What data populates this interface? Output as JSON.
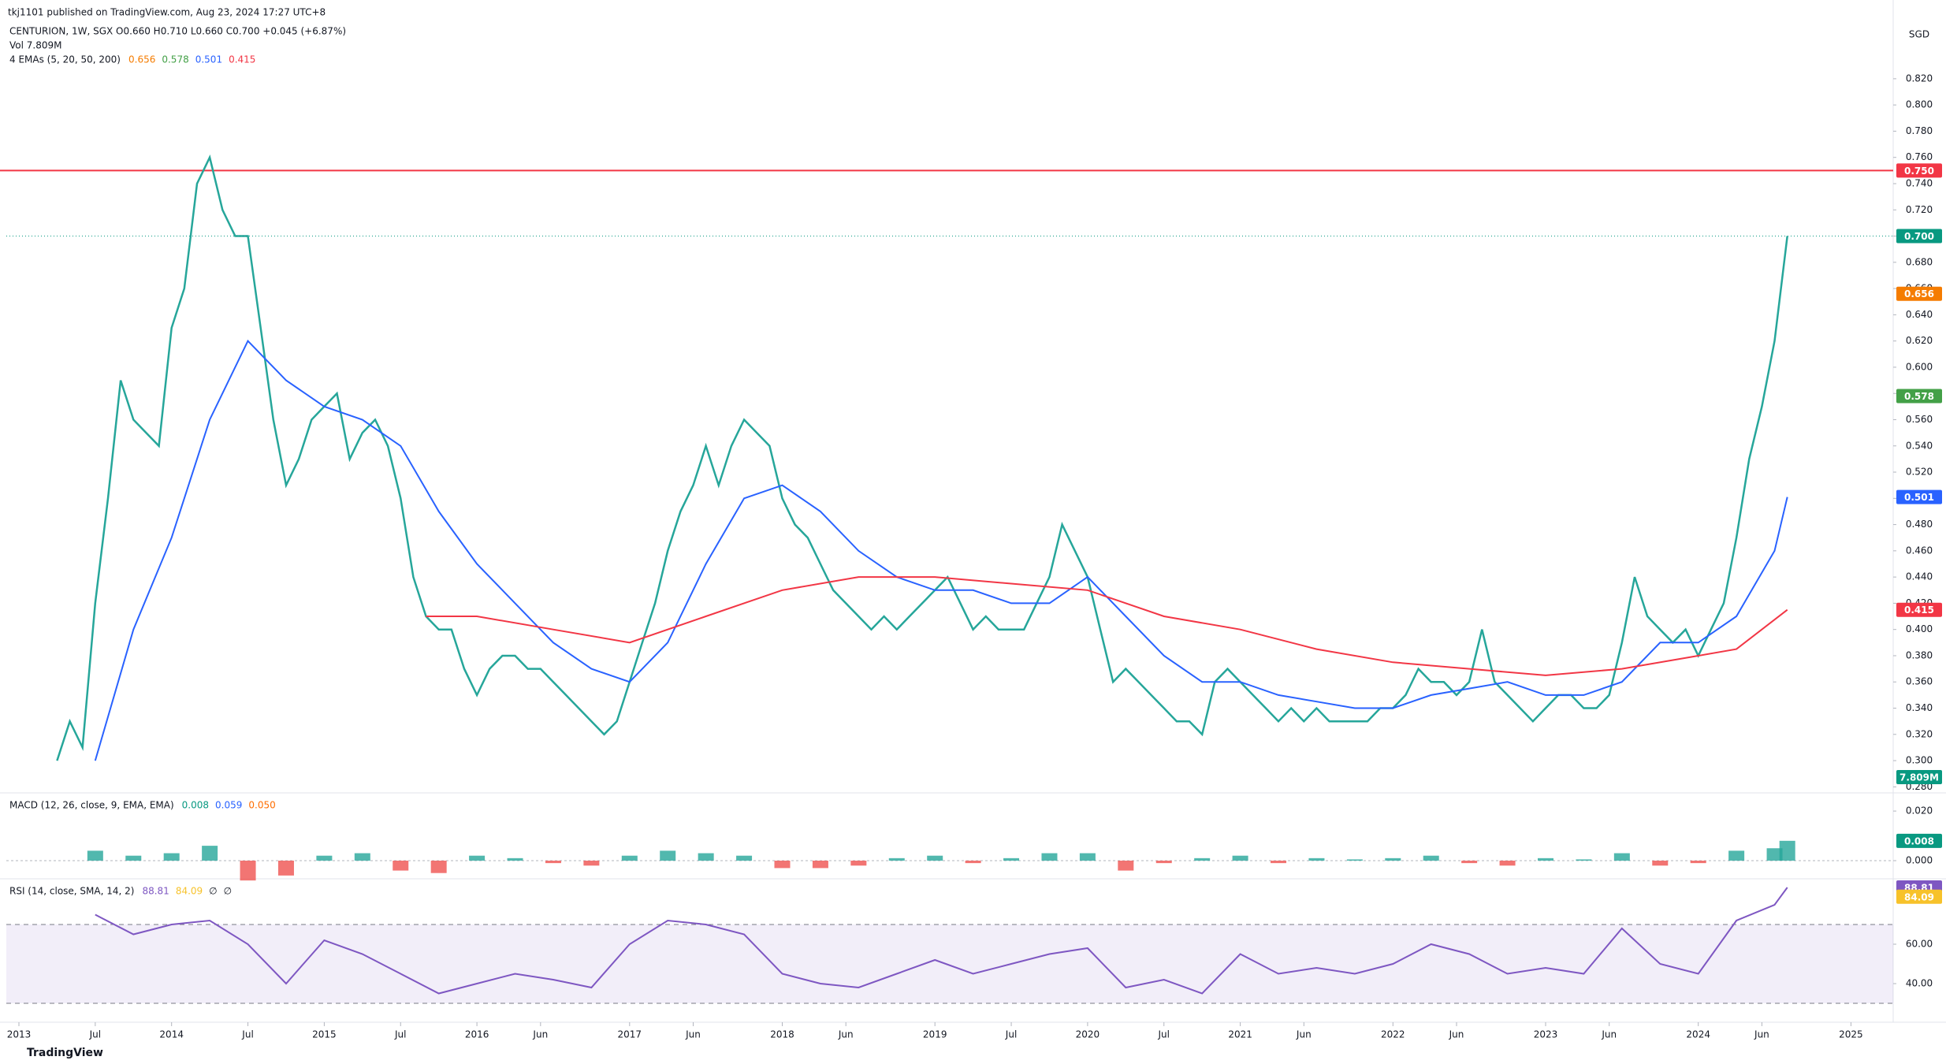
{
  "header": "tkj1101 published on TradingView.com, Aug 23, 2024 17:27 UTC+8",
  "footer": "TradingView",
  "currency": "SGD",
  "chart_data": [
    {
      "type": "line",
      "title": "CENTURION, 1W, SGX  O0.660  H0.710  L0.660  C0.700  +0.045 (+6.87%)",
      "volume_legend": "Vol  7.809M",
      "volume_tag": "7.809M",
      "ema_legend": "4 EMAs (5, 20, 50, 200)",
      "ema_values": [
        {
          "label": "0.656",
          "color": "#f57c00"
        },
        {
          "label": "0.578",
          "color": "#43a047"
        },
        {
          "label": "0.501",
          "color": "#2962ff"
        },
        {
          "label": "0.415",
          "color": "#f23645"
        }
      ],
      "ylim": [
        0.276,
        0.862
      ],
      "yticks": [
        {
          "value": 0.28,
          "label": "0.280"
        },
        {
          "value": 0.3,
          "label": "0.300"
        },
        {
          "value": 0.32,
          "label": "0.320"
        },
        {
          "value": 0.34,
          "label": "0.340"
        },
        {
          "value": 0.36,
          "label": "0.360"
        },
        {
          "value": 0.38,
          "label": "0.380"
        },
        {
          "value": 0.4,
          "label": "0.400"
        },
        {
          "value": 0.42,
          "label": "0.420"
        },
        {
          "value": 0.44,
          "label": "0.440"
        },
        {
          "value": 0.46,
          "label": "0.460"
        },
        {
          "value": 0.48,
          "label": "0.480"
        },
        {
          "value": 0.5,
          "label": "0.500"
        },
        {
          "value": 0.52,
          "label": "0.520"
        },
        {
          "value": 0.54,
          "label": "0.540"
        },
        {
          "value": 0.56,
          "label": "0.560"
        },
        {
          "value": 0.58,
          "label": "0.580"
        },
        {
          "value": 0.6,
          "label": "0.600"
        },
        {
          "value": 0.62,
          "label": "0.620"
        },
        {
          "value": 0.64,
          "label": "0.640"
        },
        {
          "value": 0.66,
          "label": "0.660"
        },
        {
          "value": 0.68,
          "label": "0.680"
        },
        {
          "value": 0.7,
          "label": "0.700"
        },
        {
          "value": 0.72,
          "label": "0.720"
        },
        {
          "value": 0.74,
          "label": "0.740"
        },
        {
          "value": 0.76,
          "label": "0.760"
        },
        {
          "value": 0.78,
          "label": "0.780"
        },
        {
          "value": 0.8,
          "label": "0.800"
        },
        {
          "value": 0.82,
          "label": "0.820"
        }
      ],
      "hline": {
        "value": 0.75,
        "label": "0.750",
        "color": "#f23645"
      },
      "tags": [
        {
          "value": 0.7,
          "label": "0.700",
          "color": "#089981"
        },
        {
          "value": 0.656,
          "label": "0.656",
          "color": "#f57c00"
        },
        {
          "value": 0.578,
          "label": "0.578",
          "color": "#43a047"
        },
        {
          "value": 0.501,
          "label": "0.501",
          "color": "#2962ff"
        },
        {
          "value": 0.415,
          "label": "0.415",
          "color": "#f23645"
        }
      ],
      "series": [
        {
          "color": "#26a69a",
          "x": [
            "2013-04",
            "2013-05",
            "2013-06",
            "2013-07",
            "2013-08",
            "2013-09",
            "2013-10",
            "2013-11",
            "2013-12",
            "2014-01",
            "2014-02",
            "2014-03",
            "2014-04",
            "2014-05",
            "2014-06",
            "2014-07",
            "2014-08",
            "2014-09",
            "2014-10",
            "2014-11",
            "2014-12",
            "2015-01",
            "2015-02",
            "2015-03",
            "2015-04",
            "2015-05",
            "2015-06",
            "2015-07",
            "2015-08",
            "2015-09",
            "2015-10",
            "2015-11",
            "2015-12",
            "2016-01",
            "2016-02",
            "2016-03",
            "2016-04",
            "2016-05",
            "2016-06",
            "2016-07",
            "2016-08",
            "2016-09",
            "2016-10",
            "2016-11",
            "2016-12",
            "2017-01",
            "2017-02",
            "2017-03",
            "2017-04",
            "2017-05",
            "2017-06",
            "2017-07",
            "2017-08",
            "2017-09",
            "2017-10",
            "2017-11",
            "2017-12",
            "2018-01",
            "2018-02",
            "2018-03",
            "2018-04",
            "2018-05",
            "2018-06",
            "2018-07",
            "2018-08",
            "2018-09",
            "2018-10",
            "2018-11",
            "2018-12",
            "2019-01",
            "2019-02",
            "2019-03",
            "2019-04",
            "2019-05",
            "2019-06",
            "2019-07",
            "2019-08",
            "2019-09",
            "2019-10",
            "2019-11",
            "2019-12",
            "2020-01",
            "2020-02",
            "2020-03",
            "2020-04",
            "2020-05",
            "2020-06",
            "2020-07",
            "2020-08",
            "2020-09",
            "2020-10",
            "2020-11",
            "2020-12",
            "2021-01",
            "2021-02",
            "2021-03",
            "2021-04",
            "2021-05",
            "2021-06",
            "2021-07",
            "2021-08",
            "2021-09",
            "2021-10",
            "2021-11",
            "2021-12",
            "2022-01",
            "2022-02",
            "2022-03",
            "2022-04",
            "2022-05",
            "2022-06",
            "2022-07",
            "2022-08",
            "2022-09",
            "2022-10",
            "2022-11",
            "2022-12",
            "2023-01",
            "2023-02",
            "2023-03",
            "2023-04",
            "2023-05",
            "2023-06",
            "2023-07",
            "2023-08",
            "2023-09",
            "2023-10",
            "2023-11",
            "2023-12",
            "2024-01",
            "2024-02",
            "2024-03",
            "2024-04",
            "2024-05",
            "2024-06",
            "2024-07",
            "2024-08"
          ],
          "values": [
            0.3,
            0.33,
            0.31,
            0.42,
            0.5,
            0.59,
            0.56,
            0.55,
            0.54,
            0.63,
            0.66,
            0.74,
            0.76,
            0.72,
            0.7,
            0.7,
            0.63,
            0.56,
            0.51,
            0.53,
            0.56,
            0.57,
            0.58,
            0.53,
            0.55,
            0.56,
            0.54,
            0.5,
            0.44,
            0.41,
            0.4,
            0.4,
            0.37,
            0.35,
            0.37,
            0.38,
            0.38,
            0.37,
            0.37,
            0.36,
            0.35,
            0.34,
            0.33,
            0.32,
            0.33,
            0.36,
            0.39,
            0.42,
            0.46,
            0.49,
            0.51,
            0.54,
            0.51,
            0.54,
            0.56,
            0.55,
            0.54,
            0.5,
            0.48,
            0.47,
            0.45,
            0.43,
            0.42,
            0.41,
            0.4,
            0.41,
            0.4,
            0.41,
            0.42,
            0.43,
            0.44,
            0.42,
            0.4,
            0.41,
            0.4,
            0.4,
            0.4,
            0.42,
            0.44,
            0.48,
            0.46,
            0.44,
            0.4,
            0.36,
            0.37,
            0.36,
            0.35,
            0.34,
            0.33,
            0.33,
            0.32,
            0.36,
            0.37,
            0.36,
            0.35,
            0.34,
            0.33,
            0.34,
            0.33,
            0.34,
            0.33,
            0.33,
            0.33,
            0.33,
            0.34,
            0.34,
            0.35,
            0.37,
            0.36,
            0.36,
            0.35,
            0.36,
            0.4,
            0.36,
            0.35,
            0.34,
            0.33,
            0.34,
            0.35,
            0.35,
            0.34,
            0.34,
            0.35,
            0.39,
            0.44,
            0.41,
            0.4,
            0.39,
            0.4,
            0.38,
            0.4,
            0.42,
            0.47,
            0.53,
            0.57,
            0.62,
            0.7
          ]
        },
        {
          "color": "#2962ff",
          "x": [
            "2013-07",
            "2013-10",
            "2014-01",
            "2014-04",
            "2014-07",
            "2014-10",
            "2015-01",
            "2015-04",
            "2015-07",
            "2015-10",
            "2016-01",
            "2016-04",
            "2016-07",
            "2016-10",
            "2017-01",
            "2017-04",
            "2017-07",
            "2017-10",
            "2018-01",
            "2018-04",
            "2018-07",
            "2018-10",
            "2019-01",
            "2019-04",
            "2019-07",
            "2019-10",
            "2020-01",
            "2020-04",
            "2020-07",
            "2020-10",
            "2021-01",
            "2021-04",
            "2021-07",
            "2021-10",
            "2022-01",
            "2022-04",
            "2022-07",
            "2022-10",
            "2023-01",
            "2023-04",
            "2023-07",
            "2023-10",
            "2024-01",
            "2024-04",
            "2024-07",
            "2024-08"
          ],
          "values": [
            0.3,
            0.4,
            0.47,
            0.56,
            0.62,
            0.59,
            0.57,
            0.56,
            0.54,
            0.49,
            0.45,
            0.42,
            0.39,
            0.37,
            0.36,
            0.39,
            0.45,
            0.5,
            0.51,
            0.49,
            0.46,
            0.44,
            0.43,
            0.43,
            0.42,
            0.42,
            0.44,
            0.41,
            0.38,
            0.36,
            0.36,
            0.35,
            0.345,
            0.34,
            0.34,
            0.35,
            0.355,
            0.36,
            0.35,
            0.35,
            0.36,
            0.39,
            0.39,
            0.41,
            0.46,
            0.501
          ]
        },
        {
          "color": "#f23645",
          "x": [
            "2015-09",
            "2016-01",
            "2016-07",
            "2017-01",
            "2017-07",
            "2018-01",
            "2018-07",
            "2019-01",
            "2019-07",
            "2020-01",
            "2020-07",
            "2021-01",
            "2021-07",
            "2022-01",
            "2022-07",
            "2023-01",
            "2023-07",
            "2024-01",
            "2024-04",
            "2024-08"
          ],
          "values": [
            0.41,
            0.41,
            0.4,
            0.39,
            0.41,
            0.43,
            0.44,
            0.44,
            0.435,
            0.43,
            0.41,
            0.4,
            0.385,
            0.375,
            0.37,
            0.365,
            0.37,
            0.38,
            0.385,
            0.415
          ]
        }
      ]
    },
    {
      "type": "bar",
      "title": "MACD (12, 26, close, 9, EMA, EMA)",
      "legend_values": [
        {
          "label": "0.008",
          "color": "#089981"
        },
        {
          "label": "0.059",
          "color": "#2962ff"
        },
        {
          "label": "0.050",
          "color": "#ff6d00"
        }
      ],
      "tag": {
        "value": 0.008,
        "label": "0.008",
        "color": "#089981"
      },
      "ylim": [
        -0.007,
        0.0267
      ],
      "yticks": [
        {
          "value": 0,
          "label": "0.000"
        },
        {
          "value": 0.02,
          "label": "0.020"
        }
      ],
      "colors": {
        "up": "#26a69a",
        "down": "#ef5350"
      },
      "x": [
        "2013-07",
        "2013-10",
        "2014-01",
        "2014-04",
        "2014-07",
        "2014-10",
        "2015-01",
        "2015-04",
        "2015-07",
        "2015-10",
        "2016-01",
        "2016-04",
        "2016-07",
        "2016-10",
        "2017-01",
        "2017-04",
        "2017-07",
        "2017-10",
        "2018-01",
        "2018-04",
        "2018-07",
        "2018-10",
        "2019-01",
        "2019-04",
        "2019-07",
        "2019-10",
        "2020-01",
        "2020-04",
        "2020-07",
        "2020-10",
        "2021-01",
        "2021-04",
        "2021-07",
        "2021-10",
        "2022-01",
        "2022-04",
        "2022-07",
        "2022-10",
        "2023-01",
        "2023-04",
        "2023-07",
        "2023-10",
        "2024-01",
        "2024-04",
        "2024-07",
        "2024-08"
      ],
      "values": [
        0.004,
        0.002,
        0.003,
        0.006,
        -0.008,
        -0.006,
        0.002,
        0.003,
        -0.004,
        -0.005,
        0.002,
        0.001,
        -0.001,
        -0.002,
        0.002,
        0.004,
        0.003,
        0.002,
        -0.003,
        -0.003,
        -0.002,
        0.001,
        0.002,
        -0.001,
        0.001,
        0.003,
        0.003,
        -0.004,
        -0.001,
        0.001,
        0.002,
        -0.001,
        0.001,
        0.0005,
        0.001,
        0.002,
        -0.001,
        -0.002,
        0.001,
        0.0005,
        0.003,
        -0.002,
        -0.001,
        0.004,
        0.005,
        0.008
      ]
    },
    {
      "type": "line",
      "title": "RSI (14, close, SMA, 14, 2)",
      "legend_values": [
        {
          "label": "88.81",
          "color": "#7e57c2"
        },
        {
          "label": "84.09",
          "color": "#f7c22a"
        },
        {
          "label": "∅",
          "color": "#131722"
        },
        {
          "label": "∅",
          "color": "#131722"
        }
      ],
      "tags": [
        {
          "value": 88.81,
          "label": "88.81",
          "color": "#7e57c2"
        },
        {
          "value": 84.09,
          "label": "84.09",
          "color": "#f7c22a"
        }
      ],
      "levels": [
        30,
        70
      ],
      "ylim": [
        20.8,
        92.4
      ],
      "yticks": [
        {
          "value": 40,
          "label": "40.00"
        },
        {
          "value": 60,
          "label": "60.00"
        }
      ],
      "xticks": [
        {
          "value": "2013-01",
          "label": "2013"
        },
        {
          "value": "2013-07",
          "label": "Jul"
        },
        {
          "value": "2014-01",
          "label": "2014"
        },
        {
          "value": "2014-07",
          "label": "Jul"
        },
        {
          "value": "2015-01",
          "label": "2015"
        },
        {
          "value": "2015-07",
          "label": "Jul"
        },
        {
          "value": "2016-01",
          "label": "2016"
        },
        {
          "value": "2016-06",
          "label": "Jun"
        },
        {
          "value": "2017-01",
          "label": "2017"
        },
        {
          "value": "2017-06",
          "label": "Jun"
        },
        {
          "value": "2018-01",
          "label": "2018"
        },
        {
          "value": "2018-06",
          "label": "Jun"
        },
        {
          "value": "2019-01",
          "label": "2019"
        },
        {
          "value": "2019-07",
          "label": "Jul"
        },
        {
          "value": "2020-01",
          "label": "2020"
        },
        {
          "value": "2020-07",
          "label": "Jul"
        },
        {
          "value": "2021-01",
          "label": "2021"
        },
        {
          "value": "2021-06",
          "label": "Jun"
        },
        {
          "value": "2022-01",
          "label": "2022"
        },
        {
          "value": "2022-06",
          "label": "Jun"
        },
        {
          "value": "2023-01",
          "label": "2023"
        },
        {
          "value": "2023-06",
          "label": "Jun"
        },
        {
          "value": "2024-01",
          "label": "2024"
        },
        {
          "value": "2024-06",
          "label": "Jun"
        },
        {
          "value": "2025-01",
          "label": "2025"
        }
      ],
      "series": [
        {
          "color": "#7e57c2",
          "x": [
            "2013-07",
            "2013-10",
            "2014-01",
            "2014-04",
            "2014-07",
            "2014-10",
            "2015-01",
            "2015-04",
            "2015-07",
            "2015-10",
            "2016-01",
            "2016-04",
            "2016-07",
            "2016-10",
            "2017-01",
            "2017-04",
            "2017-07",
            "2017-10",
            "2018-01",
            "2018-04",
            "2018-07",
            "2018-10",
            "2019-01",
            "2019-04",
            "2019-07",
            "2019-10",
            "2020-01",
            "2020-04",
            "2020-07",
            "2020-10",
            "2021-01",
            "2021-04",
            "2021-07",
            "2021-10",
            "2022-01",
            "2022-04",
            "2022-07",
            "2022-10",
            "2023-01",
            "2023-04",
            "2023-07",
            "2023-10",
            "2024-01",
            "2024-04",
            "2024-07",
            "2024-08"
          ],
          "values": [
            75,
            65,
            70,
            72,
            60,
            40,
            62,
            55,
            45,
            35,
            40,
            45,
            42,
            38,
            60,
            72,
            70,
            65,
            45,
            40,
            38,
            45,
            52,
            45,
            50,
            55,
            58,
            38,
            42,
            35,
            55,
            45,
            48,
            45,
            50,
            60,
            55,
            45,
            48,
            45,
            68,
            50,
            45,
            72,
            80,
            88.81
          ]
        }
      ]
    }
  ]
}
